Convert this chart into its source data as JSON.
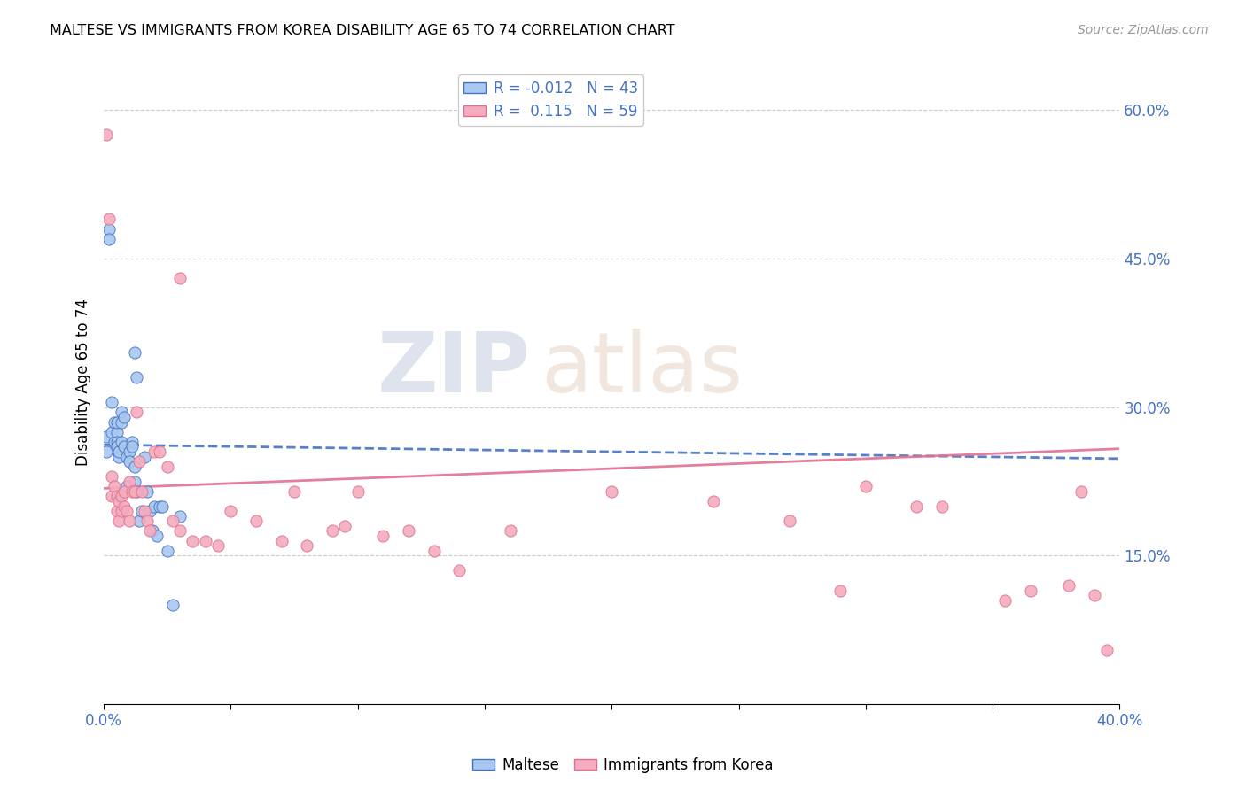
{
  "title": "MALTESE VS IMMIGRANTS FROM KOREA DISABILITY AGE 65 TO 74 CORRELATION CHART",
  "source": "Source: ZipAtlas.com",
  "ylabel": "Disability Age 65 to 74",
  "ylabel_right_ticks": [
    "60.0%",
    "45.0%",
    "30.0%",
    "15.0%"
  ],
  "ylabel_right_vals": [
    0.6,
    0.45,
    0.3,
    0.15
  ],
  "blue_color": "#A8C8F0",
  "pink_color": "#F4ACBE",
  "blue_line_color": "#4472C4",
  "pink_line_color": "#E07090",
  "watermark_zip": "ZIP",
  "watermark_atlas": "atlas",
  "xlim": [
    0.0,
    0.4
  ],
  "ylim": [
    0.0,
    0.65
  ],
  "blue_x": [
    0.001,
    0.001,
    0.002,
    0.002,
    0.003,
    0.003,
    0.004,
    0.004,
    0.005,
    0.005,
    0.005,
    0.005,
    0.006,
    0.006,
    0.007,
    0.007,
    0.007,
    0.008,
    0.008,
    0.009,
    0.009,
    0.01,
    0.01,
    0.011,
    0.011,
    0.012,
    0.012,
    0.013,
    0.014,
    0.015,
    0.016,
    0.017,
    0.018,
    0.019,
    0.02,
    0.021,
    0.022,
    0.023,
    0.025,
    0.027,
    0.03,
    0.012,
    0.013
  ],
  "blue_y": [
    0.27,
    0.255,
    0.48,
    0.47,
    0.305,
    0.275,
    0.265,
    0.285,
    0.275,
    0.265,
    0.285,
    0.26,
    0.25,
    0.255,
    0.295,
    0.285,
    0.265,
    0.29,
    0.26,
    0.25,
    0.22,
    0.255,
    0.245,
    0.265,
    0.26,
    0.24,
    0.225,
    0.215,
    0.185,
    0.195,
    0.25,
    0.215,
    0.195,
    0.175,
    0.2,
    0.17,
    0.2,
    0.2,
    0.155,
    0.1,
    0.19,
    0.355,
    0.33
  ],
  "pink_x": [
    0.001,
    0.002,
    0.003,
    0.003,
    0.004,
    0.005,
    0.005,
    0.006,
    0.006,
    0.007,
    0.007,
    0.008,
    0.008,
    0.009,
    0.01,
    0.01,
    0.011,
    0.012,
    0.013,
    0.014,
    0.015,
    0.016,
    0.017,
    0.018,
    0.02,
    0.022,
    0.025,
    0.027,
    0.03,
    0.035,
    0.04,
    0.045,
    0.05,
    0.06,
    0.07,
    0.075,
    0.08,
    0.09,
    0.095,
    0.1,
    0.11,
    0.12,
    0.13,
    0.14,
    0.16,
    0.2,
    0.24,
    0.27,
    0.29,
    0.3,
    0.32,
    0.33,
    0.355,
    0.365,
    0.38,
    0.385,
    0.39,
    0.03,
    0.395
  ],
  "pink_y": [
    0.575,
    0.49,
    0.23,
    0.21,
    0.22,
    0.21,
    0.195,
    0.205,
    0.185,
    0.21,
    0.195,
    0.215,
    0.2,
    0.195,
    0.225,
    0.185,
    0.215,
    0.215,
    0.295,
    0.245,
    0.215,
    0.195,
    0.185,
    0.175,
    0.255,
    0.255,
    0.24,
    0.185,
    0.175,
    0.165,
    0.165,
    0.16,
    0.195,
    0.185,
    0.165,
    0.215,
    0.16,
    0.175,
    0.18,
    0.215,
    0.17,
    0.175,
    0.155,
    0.135,
    0.175,
    0.215,
    0.205,
    0.185,
    0.115,
    0.22,
    0.2,
    0.2,
    0.105,
    0.115,
    0.12,
    0.215,
    0.11,
    0.43,
    0.055
  ]
}
